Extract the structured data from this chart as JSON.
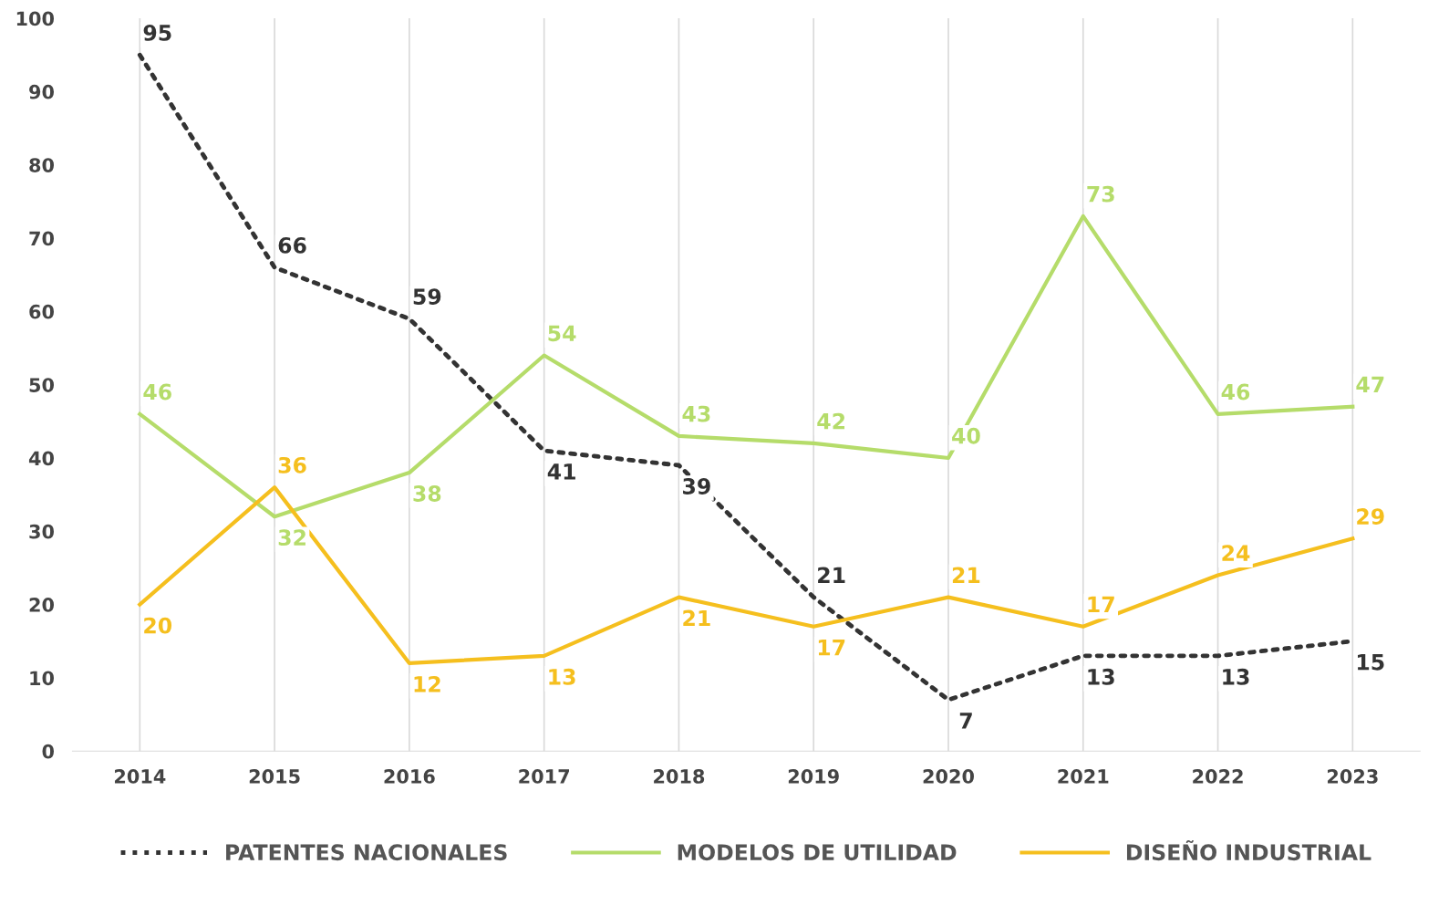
{
  "chart_data": {
    "type": "line",
    "categories": [
      "2014",
      "2015",
      "2016",
      "2017",
      "2018",
      "2019",
      "2020",
      "2021",
      "2022",
      "2023"
    ],
    "series": [
      {
        "name": "PATENTES NACIONALES",
        "color": "#333333",
        "line_style": "dotted",
        "values": [
          95,
          66,
          59,
          41,
          39,
          21,
          7,
          13,
          13,
          15
        ]
      },
      {
        "name": "MODELOS DE UTILIDAD",
        "color": "#b5dc6a",
        "line_style": "solid",
        "values": [
          46,
          32,
          38,
          54,
          43,
          42,
          40,
          73,
          46,
          47
        ]
      },
      {
        "name": "DISEÑO INDUSTRIAL",
        "color": "#f5bf1e",
        "line_style": "solid",
        "values": [
          20,
          36,
          12,
          13,
          21,
          17,
          21,
          17,
          24,
          29
        ]
      }
    ],
    "ylim": [
      0,
      100
    ],
    "yticks": [
      0,
      10,
      20,
      30,
      40,
      50,
      60,
      70,
      80,
      90,
      100
    ],
    "grid": "x",
    "legend": "bottom",
    "data_labels": true
  }
}
